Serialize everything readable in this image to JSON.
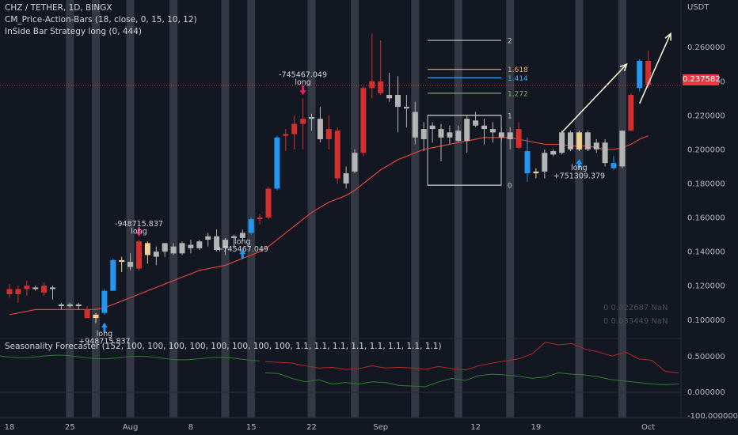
{
  "header": {
    "symbol": "CHZ / TETHER, 1D, BINGX",
    "indicator_1": "CM_Price-Action-Bars (18, close, 0, 15, 10, 12)",
    "indicator_2": "InSide Bar Strategy long (0, 444)",
    "seasonality": "Seasonality Forecaster (152, 100, 100, 100, 100, 100, 100, 100, 100, 1.1, 1.1, 1.1, 1.1, 1.1, 1.1, 1.1, 1.1)"
  },
  "price_axis": {
    "unit": "USDT",
    "current_price": "0.237582"
  },
  "stats": {
    "row_1": "0   0.022687   NaN",
    "row_2": "0   0.033449   NaN"
  },
  "colors": {
    "background": "#131722",
    "up": "#2196f3",
    "down": "#d32f2f",
    "neutral": "#b4b4b4",
    "inside": "#f0d090",
    "ma": "#e0443a",
    "price_line": "#f23645",
    "highlight_band": "#3a3e4a",
    "seasonality_red": "#b22a2a",
    "seasonality_green": "#2e7d32"
  },
  "chart_data": {
    "type": "candlestick",
    "x_labels": [
      "18",
      "25",
      "Aug",
      "8",
      "15",
      "22",
      "Sep",
      "12",
      "19",
      "Oct"
    ],
    "x_label_index": [
      0,
      7,
      14,
      21,
      28,
      35,
      43,
      54,
      61,
      74
    ],
    "y_ticks": [
      "0.260000",
      "0.240000",
      "0.220000",
      "0.200000",
      "0.180000",
      "0.160000",
      "0.140000",
      "0.120000",
      "0.100000"
    ],
    "y_tick_values": [
      0.26,
      0.24,
      0.22,
      0.2,
      0.18,
      0.16,
      0.14,
      0.12,
      0.1
    ],
    "ylim": [
      0.089,
      0.284
    ],
    "candles": [
      {
        "o": 0.118,
        "h": 0.121,
        "l": 0.113,
        "c": 0.115,
        "k": "down"
      },
      {
        "o": 0.115,
        "h": 0.12,
        "l": 0.11,
        "c": 0.118,
        "k": "down"
      },
      {
        "o": 0.118,
        "h": 0.123,
        "l": 0.114,
        "c": 0.12,
        "k": "down"
      },
      {
        "o": 0.119,
        "h": 0.12,
        "l": 0.117,
        "c": 0.118,
        "k": "neutral"
      },
      {
        "o": 0.12,
        "h": 0.122,
        "l": 0.114,
        "c": 0.116,
        "k": "down"
      },
      {
        "o": 0.118,
        "h": 0.12,
        "l": 0.112,
        "c": 0.119,
        "k": "neutral"
      },
      {
        "o": 0.109,
        "h": 0.11,
        "l": 0.106,
        "c": 0.108,
        "k": "neutral"
      },
      {
        "o": 0.109,
        "h": 0.11,
        "l": 0.107,
        "c": 0.108,
        "k": "neutral"
      },
      {
        "o": 0.108,
        "h": 0.11,
        "l": 0.106,
        "c": 0.109,
        "k": "neutral"
      },
      {
        "o": 0.106,
        "h": 0.108,
        "l": 0.101,
        "c": 0.101,
        "k": "down"
      },
      {
        "o": 0.101,
        "h": 0.104,
        "l": 0.098,
        "c": 0.103,
        "k": "inside"
      },
      {
        "o": 0.104,
        "h": 0.118,
        "l": 0.103,
        "c": 0.117,
        "k": "up"
      },
      {
        "o": 0.117,
        "h": 0.136,
        "l": 0.117,
        "c": 0.135,
        "k": "up"
      },
      {
        "o": 0.135,
        "h": 0.137,
        "l": 0.128,
        "c": 0.134,
        "k": "inside"
      },
      {
        "o": 0.134,
        "h": 0.139,
        "l": 0.129,
        "c": 0.131,
        "k": "neutral"
      },
      {
        "o": 0.13,
        "h": 0.147,
        "l": 0.129,
        "c": 0.146,
        "k": "down"
      },
      {
        "o": 0.145,
        "h": 0.146,
        "l": 0.133,
        "c": 0.138,
        "k": "inside"
      },
      {
        "o": 0.137,
        "h": 0.143,
        "l": 0.132,
        "c": 0.14,
        "k": "neutral"
      },
      {
        "o": 0.14,
        "h": 0.145,
        "l": 0.137,
        "c": 0.145,
        "k": "neutral"
      },
      {
        "o": 0.143,
        "h": 0.145,
        "l": 0.138,
        "c": 0.139,
        "k": "neutral"
      },
      {
        "o": 0.139,
        "h": 0.146,
        "l": 0.138,
        "c": 0.145,
        "k": "neutral"
      },
      {
        "o": 0.144,
        "h": 0.147,
        "l": 0.139,
        "c": 0.142,
        "k": "neutral"
      },
      {
        "o": 0.142,
        "h": 0.147,
        "l": 0.141,
        "c": 0.146,
        "k": "neutral"
      },
      {
        "o": 0.147,
        "h": 0.151,
        "l": 0.143,
        "c": 0.149,
        "k": "neutral"
      },
      {
        "o": 0.149,
        "h": 0.153,
        "l": 0.14,
        "c": 0.141,
        "k": "neutral"
      },
      {
        "o": 0.142,
        "h": 0.148,
        "l": 0.138,
        "c": 0.147,
        "k": "neutral"
      },
      {
        "o": 0.148,
        "h": 0.15,
        "l": 0.143,
        "c": 0.149,
        "k": "neutral"
      },
      {
        "o": 0.148,
        "h": 0.153,
        "l": 0.146,
        "c": 0.151,
        "k": "neutral"
      },
      {
        "o": 0.151,
        "h": 0.16,
        "l": 0.15,
        "c": 0.159,
        "k": "up"
      },
      {
        "o": 0.159,
        "h": 0.162,
        "l": 0.156,
        "c": 0.16,
        "k": "down"
      },
      {
        "o": 0.16,
        "h": 0.178,
        "l": 0.159,
        "c": 0.177,
        "k": "down"
      },
      {
        "o": 0.177,
        "h": 0.208,
        "l": 0.176,
        "c": 0.207,
        "k": "up"
      },
      {
        "o": 0.208,
        "h": 0.212,
        "l": 0.199,
        "c": 0.209,
        "k": "down"
      },
      {
        "o": 0.209,
        "h": 0.22,
        "l": 0.2,
        "c": 0.215,
        "k": "down"
      },
      {
        "o": 0.215,
        "h": 0.23,
        "l": 0.2,
        "c": 0.218,
        "k": "down"
      },
      {
        "o": 0.218,
        "h": 0.221,
        "l": 0.211,
        "c": 0.219,
        "k": "neutral"
      },
      {
        "o": 0.218,
        "h": 0.225,
        "l": 0.204,
        "c": 0.206,
        "k": "neutral"
      },
      {
        "o": 0.206,
        "h": 0.22,
        "l": 0.2,
        "c": 0.212,
        "k": "down"
      },
      {
        "o": 0.211,
        "h": 0.213,
        "l": 0.18,
        "c": 0.183,
        "k": "down"
      },
      {
        "o": 0.18,
        "h": 0.19,
        "l": 0.177,
        "c": 0.186,
        "k": "neutral"
      },
      {
        "o": 0.187,
        "h": 0.2,
        "l": 0.186,
        "c": 0.198,
        "k": "neutral"
      },
      {
        "o": 0.198,
        "h": 0.237,
        "l": 0.196,
        "c": 0.236,
        "k": "down"
      },
      {
        "o": 0.236,
        "h": 0.268,
        "l": 0.23,
        "c": 0.24,
        "k": "down"
      },
      {
        "o": 0.24,
        "h": 0.264,
        "l": 0.232,
        "c": 0.233,
        "k": "down"
      },
      {
        "o": 0.232,
        "h": 0.245,
        "l": 0.228,
        "c": 0.23,
        "k": "neutral"
      },
      {
        "o": 0.232,
        "h": 0.243,
        "l": 0.21,
        "c": 0.225,
        "k": "neutral"
      },
      {
        "o": 0.225,
        "h": 0.232,
        "l": 0.213,
        "c": 0.224,
        "k": "neutral"
      },
      {
        "o": 0.222,
        "h": 0.228,
        "l": 0.203,
        "c": 0.207,
        "k": "neutral"
      },
      {
        "o": 0.206,
        "h": 0.216,
        "l": 0.199,
        "c": 0.212,
        "k": "neutral"
      },
      {
        "o": 0.212,
        "h": 0.216,
        "l": 0.204,
        "c": 0.214,
        "k": "neutral"
      },
      {
        "o": 0.212,
        "h": 0.215,
        "l": 0.193,
        "c": 0.207,
        "k": "neutral"
      },
      {
        "o": 0.207,
        "h": 0.214,
        "l": 0.203,
        "c": 0.21,
        "k": "neutral"
      },
      {
        "o": 0.211,
        "h": 0.214,
        "l": 0.204,
        "c": 0.205,
        "k": "neutral"
      },
      {
        "o": 0.205,
        "h": 0.22,
        "l": 0.198,
        "c": 0.218,
        "k": "neutral"
      },
      {
        "o": 0.217,
        "h": 0.222,
        "l": 0.213,
        "c": 0.214,
        "k": "neutral"
      },
      {
        "o": 0.214,
        "h": 0.218,
        "l": 0.203,
        "c": 0.212,
        "k": "neutral"
      },
      {
        "o": 0.212,
        "h": 0.216,
        "l": 0.204,
        "c": 0.21,
        "k": "neutral"
      },
      {
        "o": 0.21,
        "h": 0.213,
        "l": 0.205,
        "c": 0.207,
        "k": "neutral"
      },
      {
        "o": 0.206,
        "h": 0.213,
        "l": 0.2,
        "c": 0.21,
        "k": "neutral"
      },
      {
        "o": 0.212,
        "h": 0.216,
        "l": 0.2,
        "c": 0.201,
        "k": "down"
      },
      {
        "o": 0.199,
        "h": 0.207,
        "l": 0.181,
        "c": 0.186,
        "k": "up"
      },
      {
        "o": 0.186,
        "h": 0.189,
        "l": 0.183,
        "c": 0.187,
        "k": "inside"
      },
      {
        "o": 0.187,
        "h": 0.2,
        "l": 0.183,
        "c": 0.198,
        "k": "neutral"
      },
      {
        "o": 0.197,
        "h": 0.2,
        "l": 0.196,
        "c": 0.199,
        "k": "neutral"
      },
      {
        "o": 0.198,
        "h": 0.211,
        "l": 0.197,
        "c": 0.21,
        "k": "neutral"
      },
      {
        "o": 0.21,
        "h": 0.211,
        "l": 0.199,
        "c": 0.2,
        "k": "neutral"
      },
      {
        "o": 0.2,
        "h": 0.211,
        "l": 0.199,
        "c": 0.21,
        "k": "inside"
      },
      {
        "o": 0.21,
        "h": 0.211,
        "l": 0.199,
        "c": 0.2,
        "k": "neutral"
      },
      {
        "o": 0.2,
        "h": 0.206,
        "l": 0.198,
        "c": 0.204,
        "k": "neutral"
      },
      {
        "o": 0.204,
        "h": 0.206,
        "l": 0.19,
        "c": 0.192,
        "k": "neutral"
      },
      {
        "o": 0.192,
        "h": 0.196,
        "l": 0.188,
        "c": 0.189,
        "k": "up"
      },
      {
        "o": 0.19,
        "h": 0.211,
        "l": 0.189,
        "c": 0.211,
        "k": "neutral"
      },
      {
        "o": 0.211,
        "h": 0.233,
        "l": 0.211,
        "c": 0.232,
        "k": "down"
      },
      {
        "o": 0.236,
        "h": 0.253,
        "l": 0.234,
        "c": 0.252,
        "k": "up"
      },
      {
        "o": 0.252,
        "h": 0.258,
        "l": 0.236,
        "c": 0.238,
        "k": "down"
      }
    ],
    "moving_average": [
      0.103,
      0.104,
      0.105,
      0.106,
      0.106,
      0.106,
      0.106,
      0.106,
      0.106,
      0.106,
      0.106,
      0.107,
      0.109,
      0.111,
      0.113,
      0.115,
      0.117,
      0.119,
      0.121,
      0.123,
      0.125,
      0.127,
      0.129,
      0.13,
      0.131,
      0.132,
      0.134,
      0.136,
      0.138,
      0.14,
      0.143,
      0.147,
      0.151,
      0.155,
      0.159,
      0.163,
      0.166,
      0.169,
      0.171,
      0.173,
      0.176,
      0.18,
      0.184,
      0.188,
      0.191,
      0.194,
      0.196,
      0.198,
      0.2,
      0.201,
      0.202,
      0.203,
      0.204,
      0.205,
      0.206,
      0.207,
      0.207,
      0.207,
      0.207,
      0.206,
      0.205,
      0.204,
      0.203,
      0.203,
      0.203,
      0.202,
      0.202,
      0.202,
      0.201,
      0.2,
      0.2,
      0.201,
      0.203,
      0.206,
      0.208
    ],
    "highlight_bands_index": [
      7,
      10,
      14,
      19,
      25,
      28,
      35,
      40,
      47,
      52,
      58,
      66,
      71
    ],
    "fib_levels": [
      {
        "label": "2",
        "price": 0.264,
        "color": "#c8c8c8"
      },
      {
        "label": "1.618",
        "price": 0.247,
        "color": "#f0b070"
      },
      {
        "label": "1.414",
        "price": 0.242,
        "color": "#4aa8f0"
      },
      {
        "label": "1.272",
        "price": 0.233,
        "color": "#78a878"
      },
      {
        "label": "1",
        "price": 0.22,
        "color": "#c8c8c8"
      },
      {
        "label": "0",
        "price": 0.179,
        "color": "#c8c8c8"
      }
    ],
    "annotations": [
      {
        "text": "-745467.049",
        "index": 34,
        "price": 0.2425,
        "align": "middle"
      },
      {
        "text": "long",
        "index": 34,
        "price": 0.238,
        "align": "middle"
      },
      {
        "text": "-948715.837",
        "index": 15,
        "price": 0.155,
        "align": "middle"
      },
      {
        "text": "long",
        "index": 15,
        "price": 0.1505,
        "align": "middle"
      },
      {
        "text": "long",
        "index": 27,
        "price": 0.1445,
        "align": "middle"
      },
      {
        "text": "+745467.049",
        "index": 27,
        "price": 0.14,
        "align": "middle"
      },
      {
        "text": "long",
        "index": 11,
        "price": 0.0905,
        "align": "middle"
      },
      {
        "text": "+948715.837",
        "index": 11,
        "price": 0.086,
        "align": "middle"
      },
      {
        "text": "long",
        "index": 66,
        "price": 0.188,
        "align": "middle"
      },
      {
        "text": "+751309.379",
        "index": 66,
        "price": 0.183,
        "align": "middle"
      }
    ],
    "entry_arrows_index": [
      11,
      27,
      66
    ],
    "exit_arrows_index": [
      15,
      34
    ],
    "current_price": 0.237582,
    "seasonality": {
      "y_ticks": [
        "0.500000",
        "0.000000",
        "-100.000000"
      ],
      "red": [
        0.44,
        0.43,
        0.42,
        0.38,
        0.35,
        0.36,
        0.33,
        0.34,
        0.38,
        0.35,
        0.36,
        0.35,
        0.33,
        0.37,
        0.34,
        0.32,
        0.38,
        0.42,
        0.45,
        0.48,
        0.55,
        0.72,
        0.68,
        0.7,
        0.62,
        0.58,
        0.52,
        0.58,
        0.48,
        0.46,
        0.3,
        0.28
      ],
      "green": [
        0.28,
        0.27,
        0.2,
        0.15,
        0.18,
        0.12,
        0.14,
        0.12,
        0.15,
        0.14,
        0.1,
        0.09,
        0.08,
        0.15,
        0.2,
        0.17,
        0.24,
        0.26,
        0.25,
        0.23,
        0.2,
        0.22,
        0.28,
        0.26,
        0.25,
        0.22,
        0.18,
        0.16,
        0.14,
        0.12,
        0.11,
        0.12
      ]
    }
  }
}
